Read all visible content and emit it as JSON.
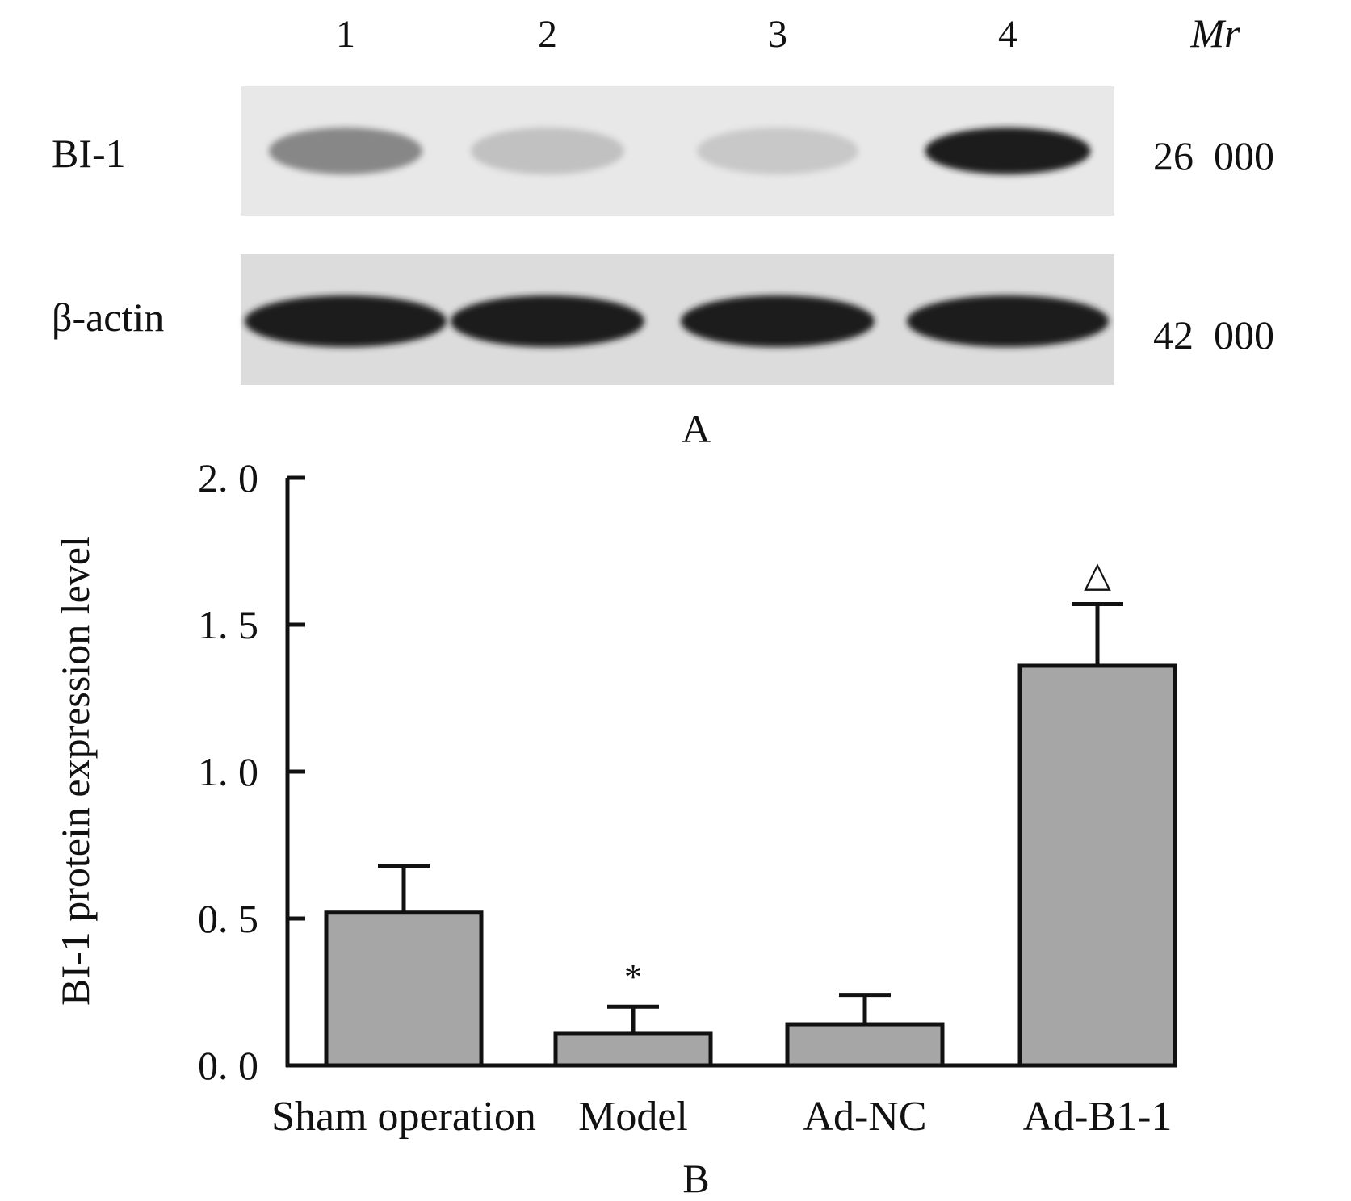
{
  "panel_a": {
    "label": "A",
    "lane_numbers": [
      "1",
      "2",
      "3",
      "4"
    ],
    "mr_header": "Mr",
    "rows": [
      {
        "protein": "BI-1",
        "mr": "26  000",
        "band_intensities": [
          0.45,
          0.18,
          0.15,
          0.95
        ]
      },
      {
        "protein": "β-actin",
        "mr": "42  000",
        "band_intensities": [
          0.95,
          0.95,
          0.95,
          0.95
        ]
      }
    ]
  },
  "panel_b": {
    "label": "B"
  },
  "chart_data": {
    "type": "bar",
    "ylabel": "BI-1 protein expression level",
    "xlabel": "",
    "categories": [
      "Sham operation",
      "Model",
      "Ad-NC",
      "Ad-B1-1"
    ],
    "values": [
      0.52,
      0.11,
      0.14,
      1.36
    ],
    "errors": [
      0.16,
      0.09,
      0.1,
      0.21
    ],
    "annotations": [
      "",
      "*",
      "",
      "△"
    ],
    "ylim": [
      0,
      2.0
    ],
    "yticks": [
      "0. 0",
      "0. 5",
      "1. 0",
      "1. 5",
      "2. 0"
    ],
    "ytick_values": [
      0,
      0.5,
      1.0,
      1.5,
      2.0
    ],
    "bar_color": "#a6a6a6",
    "grid": false,
    "legend": "none"
  }
}
